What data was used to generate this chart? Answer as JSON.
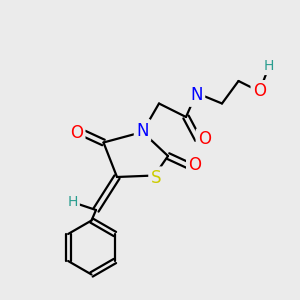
{
  "bg_color": "#ebebeb",
  "atom_colors": {
    "C": "#000000",
    "H": "#2a9d8f",
    "N": "#0000ff",
    "O": "#ff0000",
    "S": "#cccc00"
  },
  "bond_color": "#000000",
  "bond_width": 1.6,
  "font_size_atom": 12,
  "font_size_small": 10
}
